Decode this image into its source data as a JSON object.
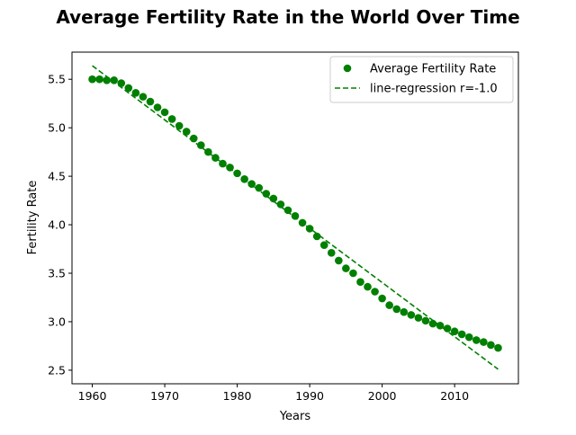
{
  "chart_data": {
    "type": "scatter",
    "title": "Average Fertility Rate in the World Over Time",
    "xlabel": "Years",
    "ylabel": "Fertility Rate",
    "xlim": [
      1957.2,
      2018.8
    ],
    "ylim": [
      2.36,
      5.78
    ],
    "xticks": [
      1960,
      1970,
      1980,
      1990,
      2000,
      2010
    ],
    "yticks": [
      2.5,
      3.0,
      3.5,
      4.0,
      4.5,
      5.0,
      5.5
    ],
    "grid": false,
    "legend_position": "top-right",
    "colors": {
      "series": "#008000",
      "axes": "#000000",
      "background": "#ffffff"
    },
    "series": [
      {
        "name": "Average Fertility Rate",
        "kind": "scatter",
        "x": [
          1960,
          1961,
          1962,
          1963,
          1964,
          1965,
          1966,
          1967,
          1968,
          1969,
          1970,
          1971,
          1972,
          1973,
          1974,
          1975,
          1976,
          1977,
          1978,
          1979,
          1980,
          1981,
          1982,
          1983,
          1984,
          1985,
          1986,
          1987,
          1988,
          1989,
          1990,
          1991,
          1992,
          1993,
          1994,
          1995,
          1996,
          1997,
          1998,
          1999,
          2000,
          2001,
          2002,
          2003,
          2004,
          2005,
          2006,
          2007,
          2008,
          2009,
          2010,
          2011,
          2012,
          2013,
          2014,
          2015,
          2016
        ],
        "y": [
          5.5,
          5.5,
          5.49,
          5.49,
          5.46,
          5.41,
          5.36,
          5.32,
          5.27,
          5.21,
          5.16,
          5.09,
          5.02,
          4.96,
          4.89,
          4.82,
          4.75,
          4.69,
          4.63,
          4.59,
          4.53,
          4.47,
          4.42,
          4.38,
          4.32,
          4.27,
          4.21,
          4.15,
          4.09,
          4.02,
          3.96,
          3.88,
          3.79,
          3.71,
          3.63,
          3.55,
          3.5,
          3.41,
          3.36,
          3.31,
          3.24,
          3.17,
          3.13,
          3.1,
          3.07,
          3.04,
          3.01,
          2.98,
          2.96,
          2.93,
          2.9,
          2.87,
          2.84,
          2.81,
          2.79,
          2.76,
          2.73
        ]
      },
      {
        "name": "line-regression r=-1.0",
        "kind": "line",
        "style": "dashed",
        "x": [
          1960,
          2016
        ],
        "y": [
          5.64,
          2.51
        ]
      }
    ]
  }
}
